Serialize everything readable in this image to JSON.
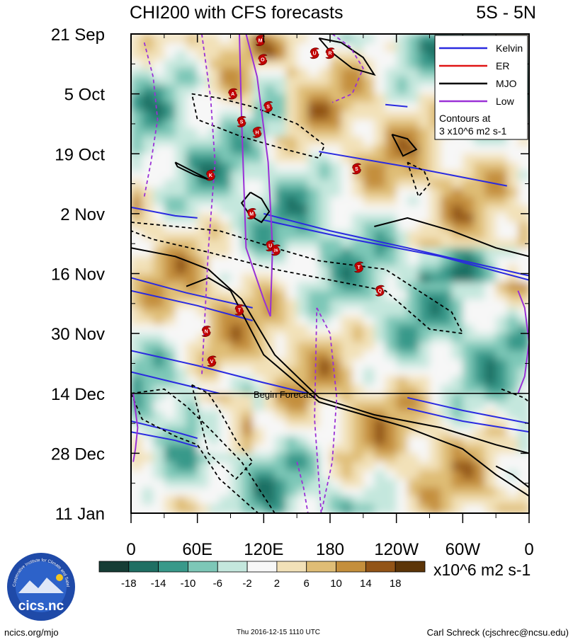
{
  "chart_data": {
    "type": "heatmap",
    "title_left": "CHI200 with CFS forecasts",
    "title_right": "5S - 5N",
    "x_ticks": [
      "0",
      "60E",
      "120E",
      "180",
      "120W",
      "60W",
      "0"
    ],
    "x_tick_values": [
      0,
      60,
      120,
      180,
      240,
      300,
      360
    ],
    "y_ticks": [
      "21 Sep",
      "5 Oct",
      "19 Oct",
      "2 Nov",
      "16 Nov",
      "30 Nov",
      "14 Dec",
      "28 Dec",
      "11 Jan"
    ],
    "y_tick_days": [
      0,
      14,
      28,
      42,
      56,
      70,
      84,
      98,
      112
    ],
    "xlim": [
      0,
      360
    ],
    "ylim_days": [
      0,
      112
    ],
    "forecast_day": 84,
    "forecast_label": "Begin Forecast",
    "colorbar": {
      "labels": [
        "-18",
        "-14",
        "-10",
        "-6",
        "-2",
        "2",
        "6",
        "10",
        "14",
        "18"
      ],
      "colors": [
        "#163d35",
        "#1f6f63",
        "#39998a",
        "#7dc7b7",
        "#c4e7dd",
        "#f7f7f7",
        "#f2e1b8",
        "#dfbd76",
        "#c48f3c",
        "#925417",
        "#5c3508"
      ],
      "units": "x10^6 m2 s-1"
    },
    "legend": {
      "items": [
        {
          "label": "Kelvin",
          "color": "#2a2ae0"
        },
        {
          "label": "ER",
          "color": "#e01515"
        },
        {
          "label": "MJO",
          "color": "#000000"
        },
        {
          "label": "Low",
          "color": "#9a31d6"
        }
      ],
      "note_line1": "Contours at",
      "note_line2": "3 x10^6 m2 s-1",
      "placement": "top-right"
    },
    "storms": [
      {
        "letter": "M",
        "lon": 117,
        "day": 1.5
      },
      {
        "letter": "O",
        "lon": 119,
        "day": 6
      },
      {
        "letter": "U",
        "lon": 166,
        "day": 4.5
      },
      {
        "letter": "R",
        "lon": 180,
        "day": 4.5
      },
      {
        "letter": "A",
        "lon": 92,
        "day": 14
      },
      {
        "letter": "S",
        "lon": 124,
        "day": 17
      },
      {
        "letter": "S",
        "lon": 100,
        "day": 20.5
      },
      {
        "letter": "H",
        "lon": 114,
        "day": 23
      },
      {
        "letter": "S",
        "lon": 204,
        "day": 31.5
      },
      {
        "letter": "K",
        "lon": 72,
        "day": 33
      },
      {
        "letter": "M",
        "lon": 109,
        "day": 42
      },
      {
        "letter": "U",
        "lon": 126,
        "day": 49.5
      },
      {
        "letter": "26",
        "lon": 131,
        "day": 50.5
      },
      {
        "letter": "T",
        "lon": 206,
        "day": 54.5
      },
      {
        "letter": "Q",
        "lon": 225,
        "day": 60
      },
      {
        "letter": "T",
        "lon": 98,
        "day": 64.5
      },
      {
        "letter": "N",
        "lon": 68,
        "day": 69.5
      },
      {
        "letter": "V",
        "lon": 73,
        "day": 76.5
      }
    ],
    "contours": {
      "kelvin": [
        {
          "lon": [
            0,
            40,
            60
          ],
          "day": [
            40.5,
            42.5,
            43
          ]
        },
        {
          "lon": [
            120,
            180,
            250,
            300,
            360
          ],
          "day": [
            42,
            46,
            50,
            53,
            56.5
          ]
        },
        {
          "lon": [
            120,
            200,
            280,
            360
          ],
          "day": [
            43.5,
            48,
            52,
            57.5
          ]
        },
        {
          "lon": [
            170,
            260,
            340
          ],
          "day": [
            27.5,
            31.5,
            35.5
          ]
        },
        {
          "lon": [
            0,
            50,
            110
          ],
          "day": [
            57,
            60.5,
            64
          ]
        },
        {
          "lon": [
            0,
            60,
            110
          ],
          "day": [
            60,
            63.5,
            67
          ]
        },
        {
          "lon": [
            0,
            60,
            120,
            160
          ],
          "day": [
            74,
            77.5,
            81.5,
            84
          ]
        },
        {
          "lon": [
            0,
            40,
            80
          ],
          "day": [
            79,
            81.5,
            84
          ]
        },
        {
          "lon": [
            0,
            40,
            60
          ],
          "day": [
            90.5,
            93,
            94.5
          ]
        },
        {
          "lon": [
            0,
            40,
            60
          ],
          "day": [
            93,
            95,
            96.5
          ]
        },
        {
          "lon": [
            250,
            300,
            360
          ],
          "day": [
            85,
            88,
            91
          ]
        },
        {
          "lon": [
            250,
            300,
            360
          ],
          "day": [
            87.5,
            90.5,
            93
          ]
        },
        {
          "lon": [
            230,
            250
          ],
          "day": [
            16.5,
            17
          ]
        }
      ],
      "mjo_solid": [
        {
          "lon": [
            40,
            55,
            70,
            58,
            42,
            40
          ],
          "day": [
            30,
            32,
            34,
            33,
            31,
            30
          ]
        },
        {
          "lon": [
            108,
            118,
            125,
            118,
            108,
            100,
            108
          ],
          "day": [
            37,
            38.5,
            41.5,
            44,
            42.5,
            39.5,
            37
          ]
        },
        {
          "lon": [
            170,
            190,
            210,
            220,
            200,
            180,
            170
          ],
          "day": [
            1,
            2,
            5.5,
            9.5,
            8,
            4,
            1
          ]
        },
        {
          "lon": [
            236,
            250,
            258,
            246,
            236
          ],
          "day": [
            23.5,
            24.5,
            27,
            28.5,
            23.5
          ]
        },
        {
          "lon": [
            0,
            40,
            70,
            100,
            130,
            170,
            220,
            280,
            330,
            360
          ],
          "day": [
            50,
            52,
            55,
            62,
            75,
            85,
            89,
            92,
            96,
            98
          ]
        },
        {
          "lon": [
            50,
            70,
            90,
            100,
            120,
            170,
            250,
            300,
            330,
            360
          ],
          "day": [
            59,
            57,
            60,
            65,
            75,
            86,
            92,
            97,
            103,
            108
          ]
        },
        {
          "lon": [
            220,
            250,
            290,
            330,
            360
          ],
          "day": [
            45,
            43,
            46,
            50,
            52
          ]
        },
        {
          "lon": [
            330,
            345,
            360
          ],
          "day": [
            101,
            103,
            106
          ]
        }
      ],
      "mjo_dashed": [
        {
          "lon": [
            55,
            80,
            110,
            150,
            175,
            170,
            140,
            100,
            60,
            55
          ],
          "day": [
            14,
            15,
            17,
            21,
            26,
            29,
            27,
            24,
            20,
            14
          ]
        },
        {
          "lon": [
            0,
            40,
            80,
            130,
            170,
            230,
            290,
            300,
            270,
            230,
            190,
            130,
            70,
            20,
            0
          ],
          "day": [
            44,
            45,
            46,
            50,
            53,
            55,
            65,
            70,
            69,
            60,
            58,
            55,
            51,
            48,
            46
          ]
        },
        {
          "lon": [
            250,
            265,
            270,
            260,
            250
          ],
          "day": [
            30,
            32,
            35,
            38,
            30
          ]
        },
        {
          "lon": [
            0,
            30,
            50,
            70,
            100,
            130,
            115,
            80,
            60,
            40,
            10,
            0
          ],
          "day": [
            84,
            83,
            87,
            92,
            100,
            112,
            112,
            104,
            96,
            94,
            90,
            84
          ]
        },
        {
          "lon": [
            55,
            70,
            80,
            95,
            110,
            95,
            70,
            55
          ],
          "day": [
            82,
            84,
            88,
            95,
            100,
            104,
            98,
            82
          ]
        },
        {
          "lon": [
            335,
            355,
            360
          ],
          "day": [
            83,
            85,
            86
          ]
        }
      ],
      "low_solid": [
        {
          "lon": [
            98,
            100,
            104,
            120,
            126,
            128,
            124,
            114,
            104,
            98
          ],
          "day": [
            0,
            20,
            50,
            62,
            66,
            50,
            30,
            10,
            0,
            0
          ]
        },
        {
          "lon": [
            350,
            356,
            360,
            356,
            350
          ],
          "day": [
            60,
            64,
            72,
            80,
            84
          ]
        },
        {
          "lon": [
            2,
            4,
            6,
            4,
            2
          ],
          "day": [
            84,
            88,
            92,
            97,
            100
          ]
        }
      ],
      "low_dashed": [
        {
          "lon": [
            12,
            20,
            24,
            18,
            12
          ],
          "day": [
            2,
            10,
            20,
            30,
            38
          ]
        },
        {
          "lon": [
            64,
            72,
            76,
            70,
            64
          ],
          "day": [
            0,
            15,
            30,
            50,
            80
          ]
        },
        {
          "lon": [
            182,
            198,
            210,
            200,
            182
          ],
          "day": [
            0,
            3,
            8,
            14,
            16
          ]
        },
        {
          "lon": [
            168,
            180,
            186,
            182,
            172,
            166,
            168
          ],
          "day": [
            64,
            70,
            85,
            100,
            112,
            90,
            64
          ]
        },
        {
          "lon": [
            150,
            156,
            160
          ],
          "day": [
            100,
            106,
            112
          ]
        }
      ]
    }
  },
  "footer": {
    "left": "ncics.org/mjo",
    "middle": "Thu 2016-12-15 1110 UTC",
    "right": "Carl Schreck (cjschrec@ncsu.edu)"
  },
  "logo": {
    "text": "cics.nc",
    "ring_text": "Cooperative Institute for Climate and Satellites"
  }
}
